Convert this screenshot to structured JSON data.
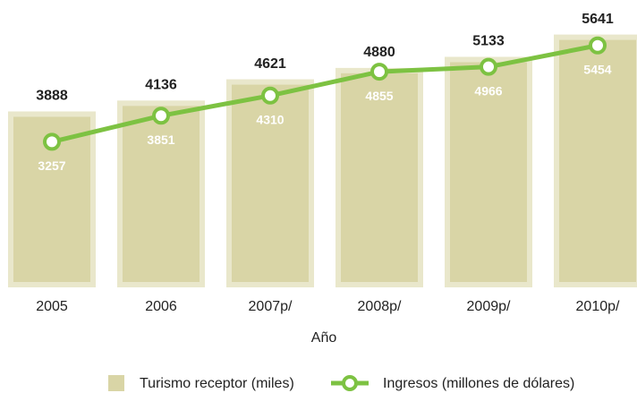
{
  "chart_data": {
    "type": "bar",
    "x_label": "Año",
    "categories": [
      "2005",
      "2006",
      "2007p/",
      "2008p/",
      "2009p/",
      "2010p/"
    ],
    "ylim": [
      0,
      6000
    ],
    "series": [
      {
        "name": "Turismo receptor (miles)",
        "type": "bar",
        "color": "#d9d5a6",
        "values": [
          3888,
          4136,
          4621,
          4880,
          5133,
          5641
        ]
      },
      {
        "name": "Ingresos (millones de dólares)",
        "type": "line",
        "color": "#7dc242",
        "values": [
          3257,
          3851,
          4310,
          4855,
          4966,
          5454
        ]
      }
    ]
  }
}
